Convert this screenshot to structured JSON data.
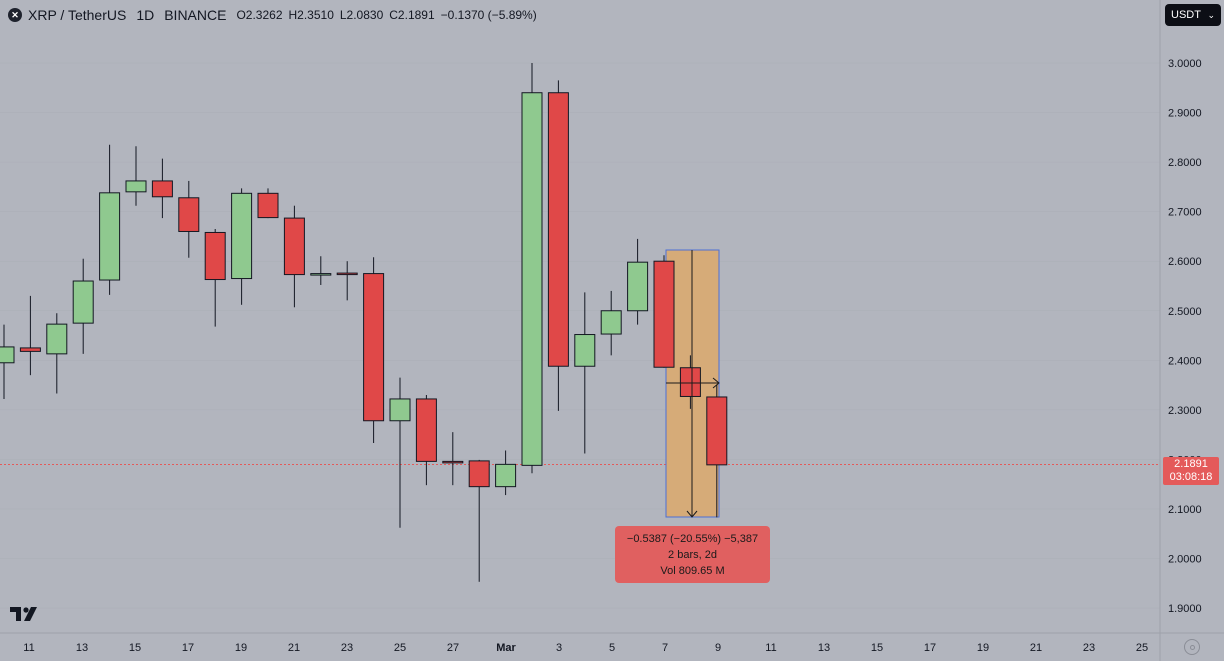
{
  "header": {
    "symbol_icon": "xrp-logo-icon",
    "title": "XRP / TetherUS",
    "interval": "1D",
    "exchange": "BINANCE",
    "open": "O2.3262",
    "high": "H2.3510",
    "low": "L2.0830",
    "close": "C2.1891",
    "change": "−0.1370 (−5.89%)"
  },
  "currency_button": {
    "label": "USDT"
  },
  "current_price": {
    "price": "2.1891",
    "countdown": "03:08:18",
    "color": "#e45a5a"
  },
  "measure": {
    "line1": "−0.5387 (−20.55%) −5,387",
    "line2": "2 bars, 2d",
    "line3": "Vol 809.65 M",
    "start_price": 2.62,
    "end_price": 2.0813
  },
  "colors": {
    "up": "#8fc98f",
    "down": "#e04848",
    "background": "#b2b5be",
    "measure_fill": "#d6ab78",
    "measure_border": "#4c6fd6"
  },
  "chart_data": {
    "type": "candlestick",
    "y_axis": {
      "ticks": [
        "3.0000",
        "2.9000",
        "2.8000",
        "2.7000",
        "2.6000",
        "2.5000",
        "2.4000",
        "2.3000",
        "2.2000",
        "2.1000",
        "2.0000",
        "1.9000"
      ],
      "range": [
        1.85,
        3.11
      ]
    },
    "x_axis": {
      "ticks": [
        "11",
        "13",
        "15",
        "17",
        "19",
        "21",
        "23",
        "25",
        "27",
        "Mar",
        "3",
        "5",
        "7",
        "9",
        "11",
        "13",
        "15",
        "17",
        "19",
        "21",
        "23",
        "25"
      ]
    },
    "candles": [
      {
        "day": 0,
        "o": 2.395,
        "h": 2.472,
        "l": 2.322,
        "c": 2.427
      },
      {
        "day": 1,
        "o": 2.425,
        "h": 2.53,
        "l": 2.37,
        "c": 2.418
      },
      {
        "day": 2,
        "o": 2.413,
        "h": 2.495,
        "l": 2.333,
        "c": 2.473
      },
      {
        "day": 3,
        "o": 2.475,
        "h": 2.605,
        "l": 2.413,
        "c": 2.56
      },
      {
        "day": 4,
        "o": 2.562,
        "h": 2.835,
        "l": 2.532,
        "c": 2.738
      },
      {
        "day": 5,
        "o": 2.74,
        "h": 2.832,
        "l": 2.712,
        "c": 2.762
      },
      {
        "day": 6,
        "o": 2.762,
        "h": 2.807,
        "l": 2.687,
        "c": 2.73
      },
      {
        "day": 7,
        "o": 2.728,
        "h": 2.762,
        "l": 2.607,
        "c": 2.66
      },
      {
        "day": 8,
        "o": 2.658,
        "h": 2.665,
        "l": 2.468,
        "c": 2.563
      },
      {
        "day": 9,
        "o": 2.565,
        "h": 2.747,
        "l": 2.512,
        "c": 2.737
      },
      {
        "day": 10,
        "o": 2.737,
        "h": 2.747,
        "l": 2.687,
        "c": 2.688
      },
      {
        "day": 11,
        "o": 2.687,
        "h": 2.712,
        "l": 2.507,
        "c": 2.573
      },
      {
        "day": 12,
        "o": 2.573,
        "h": 2.61,
        "l": 2.552,
        "c": 2.575
      },
      {
        "day": 13,
        "o": 2.576,
        "h": 2.6,
        "l": 2.521,
        "c": 2.575
      },
      {
        "day": 14,
        "o": 2.575,
        "h": 2.608,
        "l": 2.233,
        "c": 2.278
      },
      {
        "day": 15,
        "o": 2.278,
        "h": 2.365,
        "l": 2.062,
        "c": 2.322
      },
      {
        "day": 16,
        "o": 2.322,
        "h": 2.33,
        "l": 2.148,
        "c": 2.196
      },
      {
        "day": 17,
        "o": 2.196,
        "h": 2.255,
        "l": 2.148,
        "c": 2.195
      },
      {
        "day": 18,
        "o": 2.197,
        "h": 2.199,
        "l": 1.953,
        "c": 2.145
      },
      {
        "day": 19,
        "o": 2.145,
        "h": 2.218,
        "l": 2.128,
        "c": 2.19
      },
      {
        "day": 20,
        "o": 2.188,
        "h": 3.0,
        "l": 2.172,
        "c": 2.94
      },
      {
        "day": 21,
        "o": 2.94,
        "h": 2.965,
        "l": 2.298,
        "c": 2.388
      },
      {
        "day": 22,
        "o": 2.388,
        "h": 2.537,
        "l": 2.212,
        "c": 2.452
      },
      {
        "day": 23,
        "o": 2.453,
        "h": 2.54,
        "l": 2.41,
        "c": 2.5
      },
      {
        "day": 24,
        "o": 2.5,
        "h": 2.645,
        "l": 2.472,
        "c": 2.598
      },
      {
        "day": 25,
        "o": 2.6,
        "h": 2.612,
        "l": 2.385,
        "c": 2.386
      },
      {
        "day": 26,
        "o": 2.385,
        "h": 2.41,
        "l": 2.302,
        "c": 2.327
      },
      {
        "day": 27,
        "o": 2.326,
        "h": 2.351,
        "l": 2.083,
        "c": 2.189
      }
    ]
  }
}
